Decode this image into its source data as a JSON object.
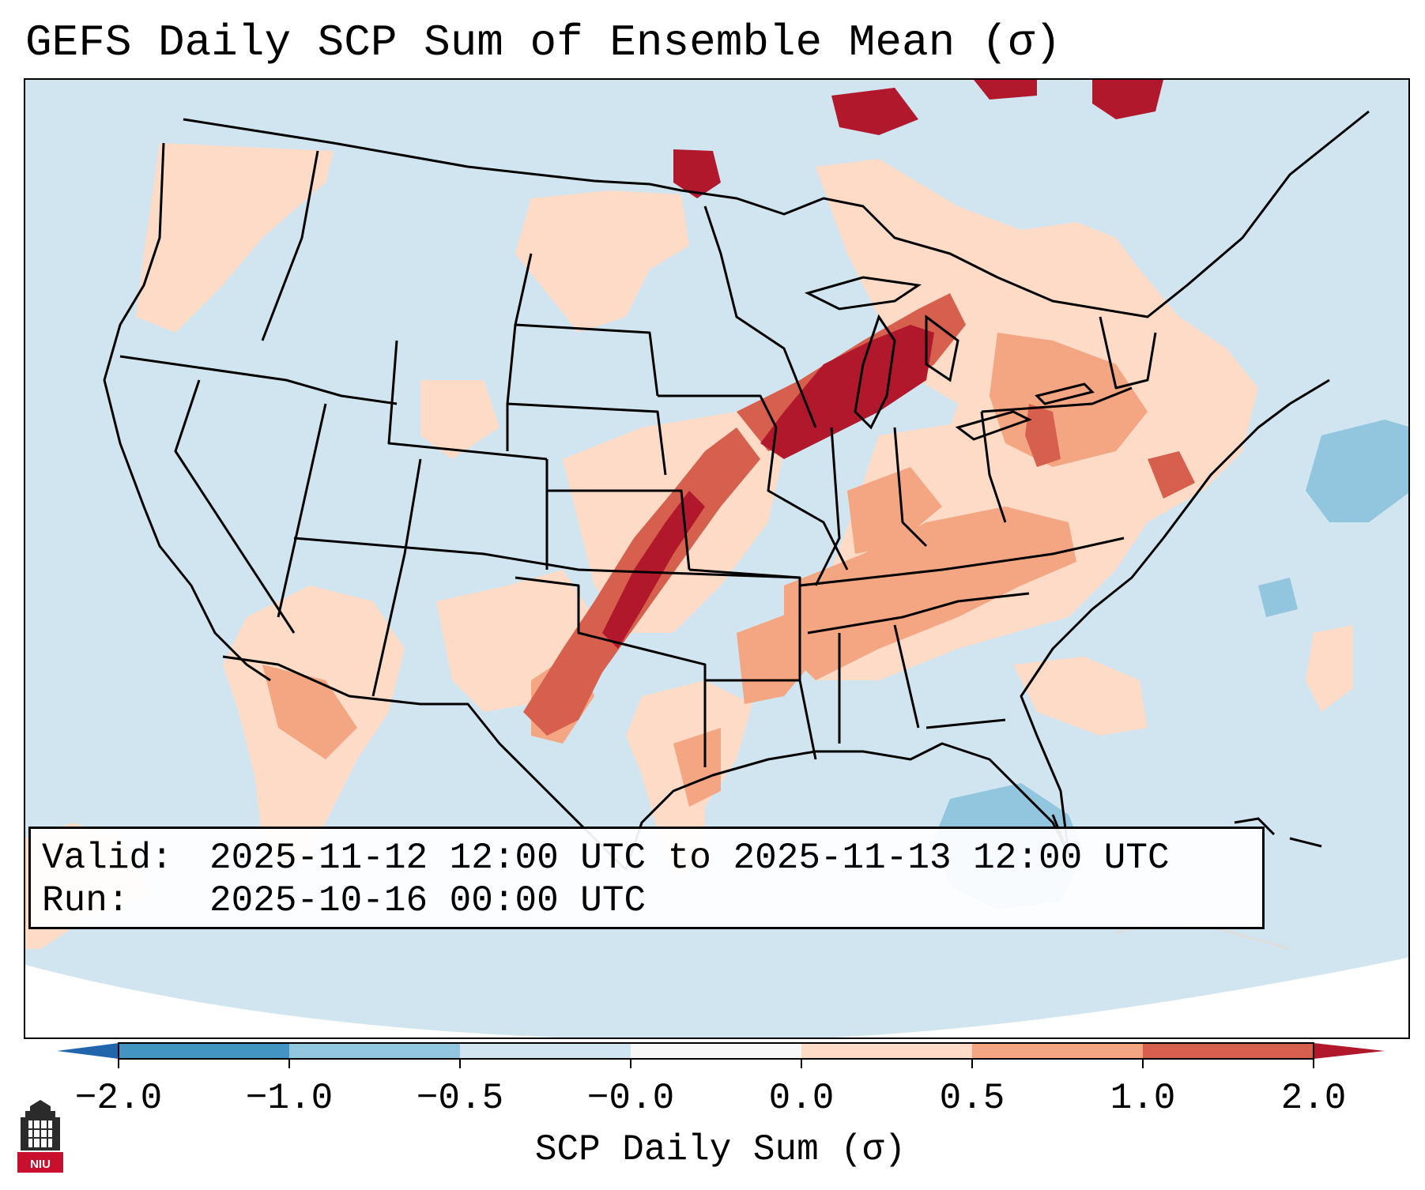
{
  "title": "GEFS Daily SCP Sum of Ensemble Mean (σ)",
  "info": {
    "valid_label": "Valid:",
    "valid_value": "2025-11-12 12:00 UTC to 2025-11-13 12:00 UTC",
    "run_label": "Run:",
    "run_value": "2025-10-16 00:00 UTC"
  },
  "colorbar": {
    "label": "SCP Daily Sum (σ)",
    "ticks": [
      "−2.0",
      "−1.0",
      "−0.5",
      "−0.0",
      "0.0",
      "0.5",
      "1.0",
      "2.0"
    ],
    "bins": [
      {
        "from": -2.0,
        "to": -1.0,
        "color": "#4393c3"
      },
      {
        "from": -1.0,
        "to": -0.5,
        "color": "#92c5de"
      },
      {
        "from": -0.5,
        "to": -0.0,
        "color": "#d1e5f0"
      },
      {
        "from": -0.0,
        "to": 0.0,
        "color": "#f7f7f7"
      },
      {
        "from": 0.0,
        "to": 0.5,
        "color": "#fddbc7"
      },
      {
        "from": 0.5,
        "to": 1.0,
        "color": "#f4a582"
      },
      {
        "from": 1.0,
        "to": 2.0,
        "color": "#d6604d"
      }
    ],
    "under_color": "#2166ac",
    "over_color": "#b2182b",
    "extend": "both"
  },
  "map": {
    "background_value_color": "#d1e5f0",
    "region": "Contiguous United States"
  },
  "logo": {
    "text": "NIU",
    "color": "#c8102e"
  }
}
